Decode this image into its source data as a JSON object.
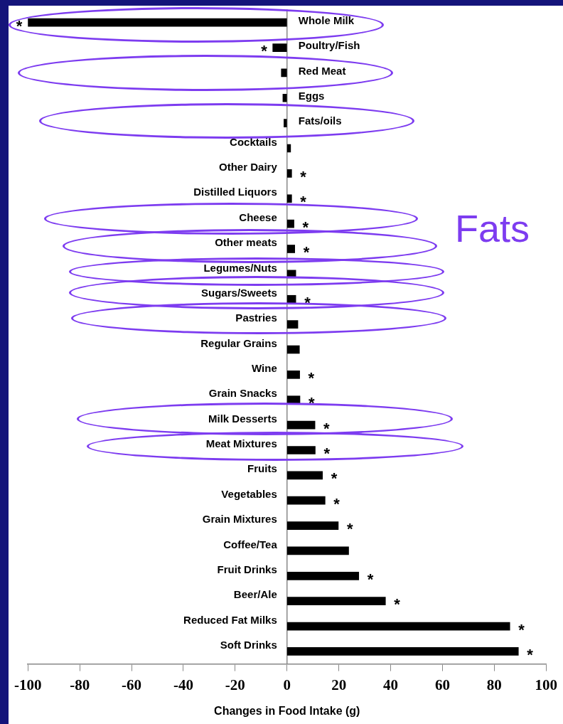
{
  "chart_data": {
    "type": "bar",
    "orientation": "horizontal",
    "xlabel": "Changes in Food Intake (g)",
    "categories": [
      "Whole Milk",
      "Poultry/Fish",
      "Red Meat",
      "Eggs",
      "Fats/oils",
      "Cocktails",
      "Other Dairy",
      "Distilled Liquors",
      "Cheese",
      "Other meats",
      "Legumes/Nuts",
      "Sugars/Sweets",
      "Pastries",
      "Regular Grains",
      "Wine",
      "Grain Snacks",
      "Milk Desserts",
      "Meat Mixtures",
      "Fruits",
      "Vegetables",
      "Grain Mixtures",
      "Coffee/Tea",
      "Fruit Drinks",
      "Beer/Ale",
      "Reduced Fat Milks",
      "Soft Drinks"
    ],
    "values": [
      -100,
      -5.5,
      -2.2,
      -1.6,
      -1.2,
      1.4,
      1.8,
      1.8,
      2.7,
      3.0,
      3.4,
      3.4,
      4.2,
      4.8,
      4.9,
      5.0,
      10.8,
      10.9,
      13.7,
      14.7,
      19.8,
      23.8,
      27.7,
      38,
      86,
      89.3
    ],
    "value_labels": [
      "*",
      "*",
      null,
      null,
      null,
      null,
      "*",
      "*",
      "*",
      "*",
      null,
      "*",
      null,
      null,
      "*",
      "*",
      "*",
      "*",
      "*",
      "*",
      "*",
      null,
      "*",
      "*",
      "*",
      "*"
    ],
    "color": "#000000",
    "xlim": [
      -100,
      100
    ],
    "xticks": [
      -100,
      -80,
      -60,
      -40,
      -20,
      0,
      20,
      40,
      60,
      80,
      100
    ],
    "annotations": [
      "Fats"
    ]
  }
}
